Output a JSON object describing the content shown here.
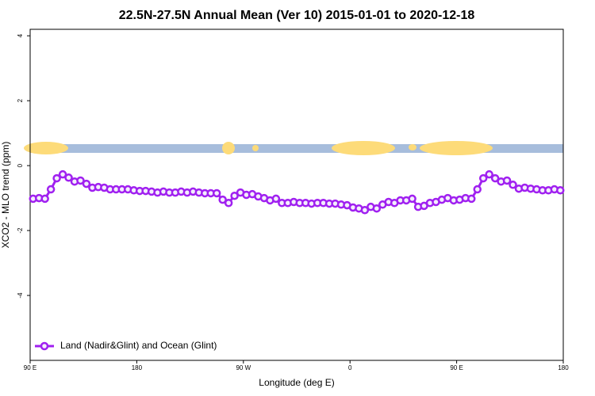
{
  "chart_data": {
    "type": "line",
    "title": "22.5N-27.5N Annual Mean (Ver 10)   2015-01-01 to 2020-12-18",
    "x_label": "Longitude (deg E)",
    "y_label": "XCO2 - MLO trend (ppm)",
    "xlim": [
      90,
      540
    ],
    "ylim": [
      -6,
      4.2
    ],
    "xticks": [
      {
        "value": 90,
        "label": "90 E"
      },
      180,
      {
        "value": 270,
        "label": "90 W"
      },
      {
        "value": 360,
        "label": "0"
      },
      {
        "value": 450,
        "label": "90 E"
      },
      {
        "value": 540,
        "label": "180"
      }
    ],
    "yticks": [
      -4,
      -2,
      0,
      2,
      4
    ],
    "legend": "bottom-left",
    "x": [
      92.5,
      97.5,
      102.5,
      107.5,
      112.5,
      117.5,
      122.5,
      127.5,
      132.5,
      137.5,
      142.5,
      147.5,
      152.5,
      157.5,
      162.5,
      167.5,
      172.5,
      177.5,
      182.5,
      187.5,
      192.5,
      197.5,
      202.5,
      207.5,
      212.5,
      217.5,
      222.5,
      227.5,
      232.5,
      237.5,
      242.5,
      247.5,
      252.5,
      257.5,
      262.5,
      267.5,
      272.5,
      277.5,
      282.5,
      287.5,
      292.5,
      297.5,
      302.5,
      307.5,
      312.5,
      317.5,
      322.5,
      327.5,
      332.5,
      337.5,
      342.5,
      347.5,
      352.5,
      357.5,
      362.5,
      367.5,
      372.5,
      377.5,
      382.5,
      387.5,
      392.5,
      397.5,
      402.5,
      407.5,
      412.5,
      417.5,
      422.5,
      427.5,
      432.5,
      437.5,
      442.5,
      447.5,
      452.5,
      457.5,
      462.5,
      467.5,
      472.5,
      477.5,
      482.5,
      487.5,
      492.5,
      497.5,
      502.5,
      507.5,
      512.5,
      517.5,
      522.5,
      527.5,
      532.5,
      537.5
    ],
    "series": [
      {
        "name": "Land (Nadir&Glint) and Ocean (Glint)",
        "color": "#a020f0",
        "values": [
          -1.02,
          -1.0,
          -1.02,
          -0.73,
          -0.39,
          -0.27,
          -0.37,
          -0.49,
          -0.46,
          -0.56,
          -0.68,
          -0.66,
          -0.68,
          -0.73,
          -0.73,
          -0.73,
          -0.73,
          -0.76,
          -0.78,
          -0.78,
          -0.8,
          -0.83,
          -0.8,
          -0.83,
          -0.83,
          -0.8,
          -0.83,
          -0.8,
          -0.83,
          -0.85,
          -0.85,
          -0.85,
          -1.05,
          -1.15,
          -0.93,
          -0.83,
          -0.9,
          -0.88,
          -0.95,
          -1.0,
          -1.07,
          -1.02,
          -1.15,
          -1.15,
          -1.12,
          -1.15,
          -1.15,
          -1.17,
          -1.15,
          -1.15,
          -1.17,
          -1.17,
          -1.2,
          -1.22,
          -1.29,
          -1.32,
          -1.37,
          -1.27,
          -1.32,
          -1.2,
          -1.12,
          -1.15,
          -1.07,
          -1.07,
          -1.02,
          -1.27,
          -1.24,
          -1.15,
          -1.12,
          -1.05,
          -1.0,
          -1.07,
          -1.05,
          -1.0,
          -1.02,
          -0.73,
          -0.39,
          -0.27,
          -0.39,
          -0.49,
          -0.46,
          -0.59,
          -0.71,
          -0.68,
          -0.71,
          -0.73,
          -0.76,
          -0.76,
          -0.73,
          -0.76
        ]
      }
    ]
  }
}
